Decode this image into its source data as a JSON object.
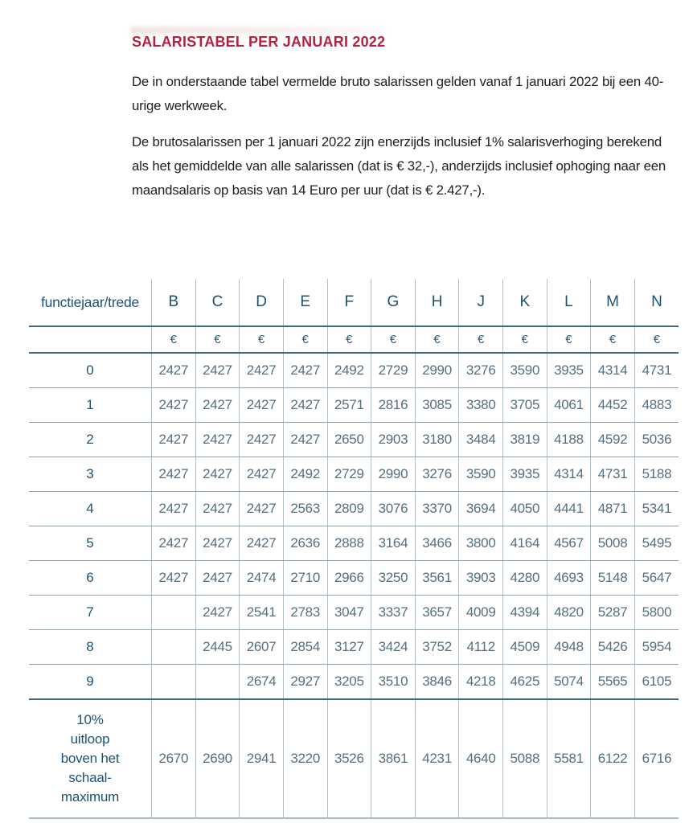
{
  "page": {
    "title": "SALARISTABEL PER JANUARI 2022",
    "paragraph_1": "De in onderstaande tabel vermelde bruto salarissen gelden vanaf 1 januari 2022 bij een 40-urige werkweek.",
    "paragraph_2": "De brutosalarissen per 1 januari 2022 zijn enerzijds inclusief 1% salarisverhoging berekend als het gemiddelde van alle salarissen (dat is € 32,-), anderzijds inclusief ophoging naar een maandsalaris op basis van 14 Euro per uur (dat is € 2.427,-)."
  },
  "colors": {
    "title_red": "#b12340",
    "table_header_blue": "#1d5274",
    "value_slate_blue": "#53707f",
    "grid_line": "#aec0cb",
    "strong_rule": "#41697f"
  },
  "table": {
    "corner_label": "functiejaar/trede",
    "currency_symbol": "€",
    "columns": [
      "B",
      "C",
      "D",
      "E",
      "F",
      "G",
      "H",
      "J",
      "K",
      "L",
      "M",
      "N"
    ],
    "rows": [
      {
        "label": "0",
        "values": [
          "2427",
          "2427",
          "2427",
          "2427",
          "2492",
          "2729",
          "2990",
          "3276",
          "3590",
          "3935",
          "4314",
          "4731"
        ]
      },
      {
        "label": "1",
        "values": [
          "2427",
          "2427",
          "2427",
          "2427",
          "2571",
          "2816",
          "3085",
          "3380",
          "3705",
          "4061",
          "4452",
          "4883"
        ]
      },
      {
        "label": "2",
        "values": [
          "2427",
          "2427",
          "2427",
          "2427",
          "2650",
          "2903",
          "3180",
          "3484",
          "3819",
          "4188",
          "4592",
          "5036"
        ]
      },
      {
        "label": "3",
        "values": [
          "2427",
          "2427",
          "2427",
          "2492",
          "2729",
          "2990",
          "3276",
          "3590",
          "3935",
          "4314",
          "4731",
          "5188"
        ]
      },
      {
        "label": "4",
        "values": [
          "2427",
          "2427",
          "2427",
          "2563",
          "2809",
          "3076",
          "3370",
          "3694",
          "4050",
          "4441",
          "4871",
          "5341"
        ]
      },
      {
        "label": "5",
        "values": [
          "2427",
          "2427",
          "2427",
          "2636",
          "2888",
          "3164",
          "3466",
          "3800",
          "4164",
          "4567",
          "5008",
          "5495"
        ]
      },
      {
        "label": "6",
        "values": [
          "2427",
          "2427",
          "2474",
          "2710",
          "2966",
          "3250",
          "3561",
          "3903",
          "4280",
          "4693",
          "5148",
          "5647"
        ]
      },
      {
        "label": "7",
        "values": [
          "",
          "2427",
          "2541",
          "2783",
          "3047",
          "3337",
          "3657",
          "4009",
          "4394",
          "4820",
          "5287",
          "5800"
        ]
      },
      {
        "label": "8",
        "values": [
          "",
          "2445",
          "2607",
          "2854",
          "3127",
          "3424",
          "3752",
          "4112",
          "4509",
          "4948",
          "5426",
          "5954"
        ]
      },
      {
        "label": "9",
        "values": [
          "",
          "",
          "2674",
          "2927",
          "3205",
          "3510",
          "3846",
          "4218",
          "4625",
          "5074",
          "5565",
          "6105"
        ]
      }
    ],
    "footer_row": {
      "label_lines": [
        "10%",
        "uitloop",
        "boven het",
        "schaal-",
        "maximum"
      ],
      "values": [
        "2670",
        "2690",
        "2941",
        "3220",
        "3526",
        "3861",
        "4231",
        "4640",
        "5088",
        "5581",
        "6122",
        "6716"
      ]
    }
  }
}
